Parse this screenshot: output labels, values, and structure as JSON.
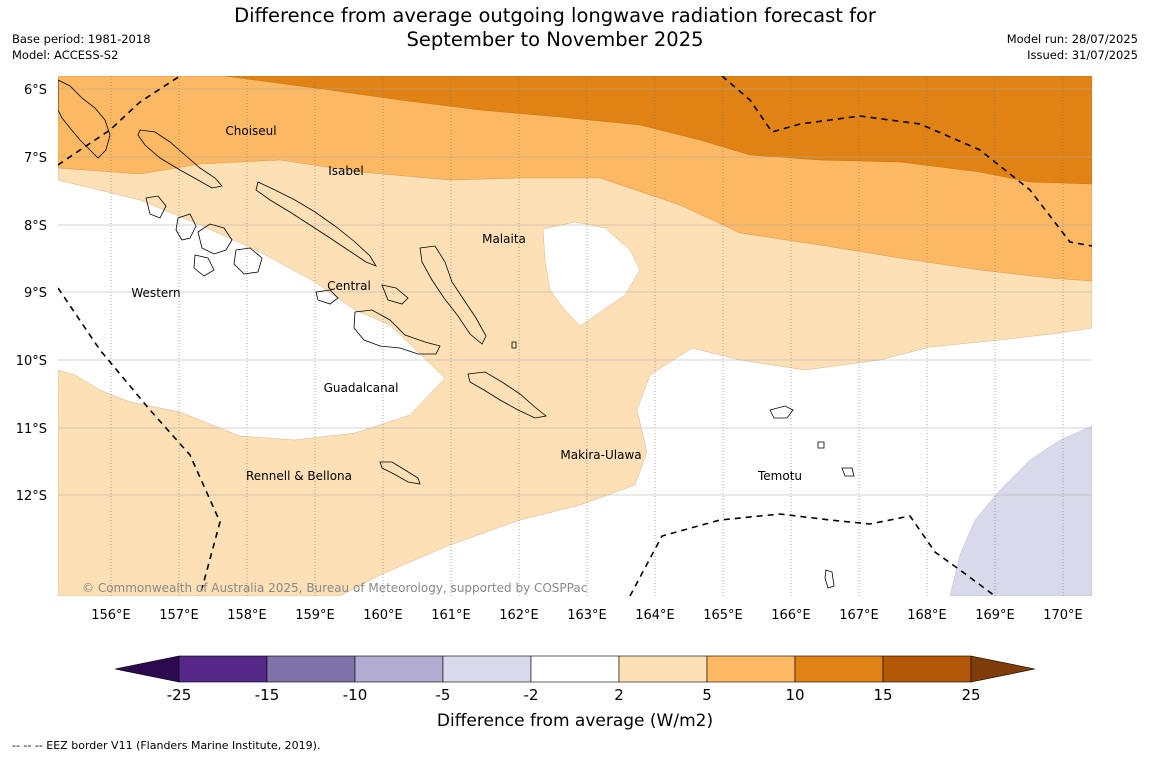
{
  "title": {
    "line1": "Difference from average outgoing longwave radiation forecast for",
    "line2": "September to November 2025"
  },
  "meta": {
    "base_period": "Base period: 1981-2018",
    "model": "Model: ACCESS-S2",
    "model_run": "Model run: 28/07/2025",
    "issued": "Issued: 31/07/2025"
  },
  "map": {
    "lat_labels": [
      "6°S",
      "7°S",
      "8°S",
      "9°S",
      "10°S",
      "11°S",
      "12°S"
    ],
    "lon_labels": [
      "156°E",
      "157°E",
      "158°E",
      "159°E",
      "160°E",
      "161°E",
      "162°E",
      "163°E",
      "164°E",
      "165°E",
      "166°E",
      "167°E",
      "168°E",
      "169°E",
      "170°E"
    ],
    "regions": {
      "choiseul": "Choiseul",
      "isabel": "Isabel",
      "malaita": "Malaita",
      "western": "Western",
      "central": "Central",
      "guadalcanal": "Guadalcanal",
      "makira": "Makira-Ulawa",
      "temotu": "Temotu",
      "rennell": "Rennell & Bellona"
    },
    "copyright": "© Commonwealth of Australia 2025, Bureau of Meteorology, supported by COSPPac"
  },
  "colorbar": {
    "ticks": [
      "-25",
      "-15",
      "-10",
      "-5",
      "-2",
      "2",
      "5",
      "10",
      "15",
      "25"
    ],
    "colors": [
      "#2d0a4f",
      "#542788",
      "#8073ac",
      "#b2abd2",
      "#d8daeb",
      "#ffffff",
      "#fee0b6",
      "#fdb863",
      "#e08214",
      "#b35806",
      "#7f3b08"
    ],
    "label": "Difference from average (W/m2)"
  },
  "footer": {
    "eez_note": "--  --  -- EEZ border V11 (Flanders Marine Institute, 2019)."
  }
}
